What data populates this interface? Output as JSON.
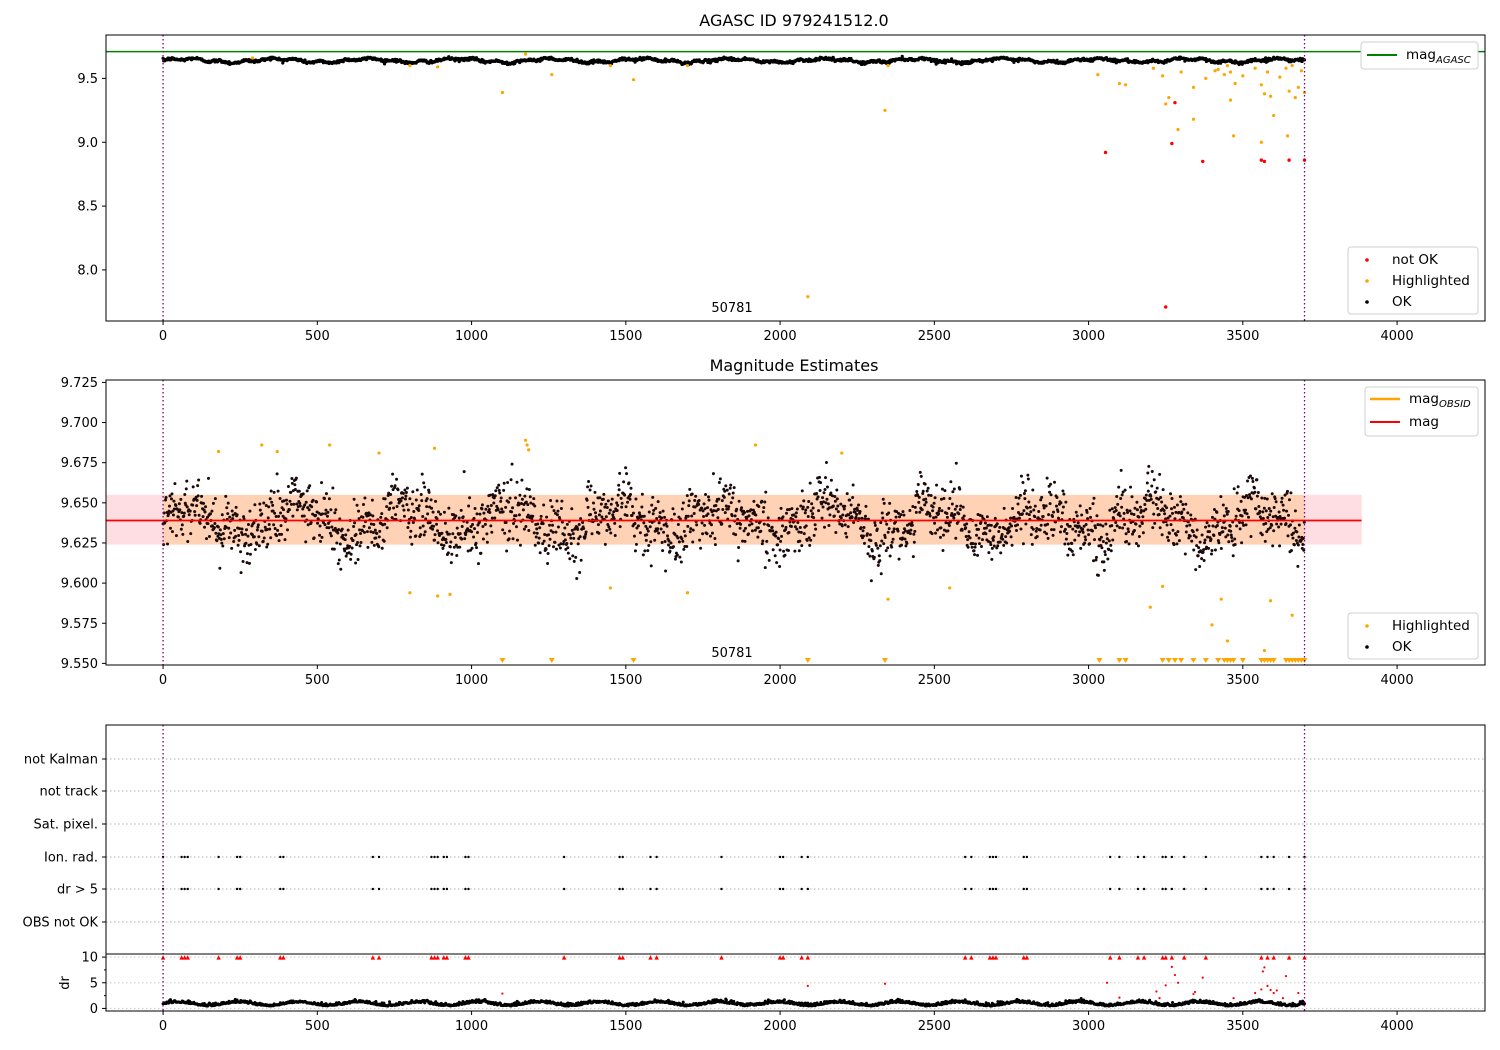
{
  "chart_data": [
    {
      "id": "top",
      "type": "scatter",
      "title": "AGASC ID 979241512.0",
      "xlabel": "",
      "ylabel": "",
      "xlim": [
        -185,
        4285
      ],
      "ylim": [
        7.6,
        9.84
      ],
      "xticks": [
        0,
        500,
        1000,
        1500,
        2000,
        2500,
        3000,
        3500,
        4000
      ],
      "yticks": [
        8.0,
        8.5,
        9.0,
        9.5
      ],
      "ytick_labels": [
        "8.0",
        "8.5",
        "9.0",
        "9.5"
      ],
      "vlines": [
        0,
        3700
      ],
      "hline_agasc": 9.71,
      "annotation": {
        "text": "50781",
        "x": 1850,
        "y": 7.7
      },
      "legends": [
        {
          "position": "top-right",
          "entries": [
            {
              "label": "mag",
              "sub": "AGASC",
              "color": "#008000",
              "kind": "line"
            }
          ]
        },
        {
          "position": "lower-right",
          "entries": [
            {
              "label": "not OK",
              "color": "#ff0000",
              "kind": "dot"
            },
            {
              "label": "Highlighted",
              "color": "#ffa500",
              "kind": "dot"
            },
            {
              "label": "OK",
              "color": "#000000",
              "kind": "dot"
            }
          ]
        }
      ],
      "series": [
        {
          "name": "OK",
          "color": "#000000",
          "kind": "band",
          "x_range": [
            0,
            3700
          ],
          "center": 9.64,
          "amplitude": 0.02
        },
        {
          "name": "Highlighted",
          "color": "#ffa500",
          "points": [
            [
              290,
              9.66
            ],
            [
              800,
              9.6
            ],
            [
              890,
              9.59
            ],
            [
              1100,
              9.39
            ],
            [
              1175,
              9.69
            ],
            [
              1260,
              9.53
            ],
            [
              1450,
              9.6
            ],
            [
              1525,
              9.49
            ],
            [
              1700,
              9.6
            ],
            [
              2090,
              7.79
            ],
            [
              2340,
              9.25
            ],
            [
              2350,
              9.6
            ],
            [
              3030,
              9.53
            ],
            [
              3100,
              9.46
            ],
            [
              3120,
              9.45
            ],
            [
              3210,
              9.58
            ],
            [
              3240,
              9.52
            ],
            [
              3250,
              9.3
            ],
            [
              3260,
              9.35
            ],
            [
              3290,
              9.1
            ],
            [
              3300,
              9.55
            ],
            [
              3340,
              9.43
            ],
            [
              3340,
              9.18
            ],
            [
              3380,
              9.5
            ],
            [
              3410,
              9.56
            ],
            [
              3420,
              9.57
            ],
            [
              3440,
              9.53
            ],
            [
              3450,
              9.6
            ],
            [
              3460,
              9.55
            ],
            [
              3460,
              9.33
            ],
            [
              3470,
              9.05
            ],
            [
              3475,
              9.46
            ],
            [
              3500,
              9.52
            ],
            [
              3540,
              9.58
            ],
            [
              3560,
              9.45
            ],
            [
              3560,
              9.0
            ],
            [
              3570,
              9.38
            ],
            [
              3580,
              9.55
            ],
            [
              3590,
              9.36
            ],
            [
              3600,
              9.21
            ],
            [
              3620,
              9.51
            ],
            [
              3640,
              9.58
            ],
            [
              3645,
              9.05
            ],
            [
              3650,
              9.4
            ],
            [
              3660,
              9.6
            ],
            [
              3670,
              9.35
            ],
            [
              3680,
              9.43
            ],
            [
              3690,
              9.56
            ],
            [
              3700,
              9.39
            ]
          ]
        },
        {
          "name": "not OK",
          "color": "#ff0000",
          "points": [
            [
              3055,
              8.92
            ],
            [
              3250,
              7.71
            ],
            [
              3270,
              8.99
            ],
            [
              3280,
              9.31
            ],
            [
              3370,
              8.85
            ],
            [
              3560,
              8.86
            ],
            [
              3570,
              8.85
            ],
            [
              3650,
              8.86
            ],
            [
              3700,
              8.86
            ]
          ]
        }
      ]
    },
    {
      "id": "middle",
      "type": "scatter",
      "title": "Magnitude Estimates",
      "xlabel": "",
      "ylabel": "",
      "xlim": [
        -185,
        4285
      ],
      "ylim": [
        9.549,
        9.7265
      ],
      "xticks": [
        0,
        500,
        1000,
        1500,
        2000,
        2500,
        3000,
        3500,
        4000
      ],
      "yticks": [
        9.55,
        9.575,
        9.6,
        9.625,
        9.65,
        9.675,
        9.7,
        9.725
      ],
      "ytick_labels": [
        "9.550",
        "9.575",
        "9.600",
        "9.625",
        "9.650",
        "9.675",
        "9.700",
        "9.725"
      ],
      "vlines": [
        0,
        3700
      ],
      "mag_line": {
        "value": 9.639,
        "x_range": [
          -185,
          3885
        ],
        "color": "#ff0000"
      },
      "mag_band": {
        "low": 9.624,
        "high": 9.655,
        "x_range": [
          -185,
          3885
        ]
      },
      "annotation": {
        "text": "50781",
        "x": 1850,
        "y": 9.553
      },
      "legends": [
        {
          "position": "top-right",
          "entries": [
            {
              "label": "mag",
              "sub": "OBSID",
              "color": "#ffa500",
              "kind": "line"
            },
            {
              "label": "mag",
              "color": "#ff0000",
              "kind": "line"
            }
          ]
        },
        {
          "position": "lower-right",
          "entries": [
            {
              "label": "Highlighted",
              "color": "#ffa500",
              "kind": "dot"
            },
            {
              "label": "OK",
              "color": "#000000",
              "kind": "dot"
            }
          ]
        }
      ],
      "series": [
        {
          "name": "OK",
          "color": "#000000",
          "kind": "cloud",
          "x_range": [
            0,
            3700
          ],
          "center": 9.639,
          "spread": 0.013
        },
        {
          "name": "Highlighted",
          "color": "#ffa500",
          "points": [
            [
              180,
              9.682
            ],
            [
              320,
              9.686
            ],
            [
              370,
              9.682
            ],
            [
              540,
              9.686
            ],
            [
              700,
              9.681
            ],
            [
              800,
              9.594
            ],
            [
              880,
              9.684
            ],
            [
              890,
              9.592
            ],
            [
              930,
              9.593
            ],
            [
              1175,
              9.689
            ],
            [
              1180,
              9.686
            ],
            [
              1185,
              9.683
            ],
            [
              1450,
              9.597
            ],
            [
              1700,
              9.594
            ],
            [
              1920,
              9.686
            ],
            [
              2200,
              9.681
            ],
            [
              2350,
              9.59
            ],
            [
              2550,
              9.597
            ],
            [
              3200,
              9.585
            ],
            [
              3240,
              9.598
            ],
            [
              3400,
              9.574
            ],
            [
              3430,
              9.59
            ],
            [
              3450,
              9.564
            ],
            [
              3570,
              9.558
            ],
            [
              3590,
              9.589
            ],
            [
              3660,
              9.58
            ]
          ]
        },
        {
          "name": "Highlighted (clipped)",
          "color": "#ffa500",
          "kind": "triangles",
          "y": 9.5515,
          "x": [
            1100,
            1260,
            1525,
            2090,
            2340,
            3035,
            3100,
            3120,
            3240,
            3260,
            3280,
            3300,
            3340,
            3380,
            3420,
            3440,
            3450,
            3460,
            3470,
            3500,
            3560,
            3570,
            3580,
            3590,
            3600,
            3640,
            3650,
            3660,
            3670,
            3680,
            3690,
            3700
          ]
        }
      ]
    },
    {
      "id": "bottom",
      "type": "scatter",
      "title": "",
      "xlabel": "",
      "ylabel": "",
      "xlim": [
        -185,
        4285
      ],
      "category_labels": [
        "not Kalman",
        "not track",
        "Sat. pixel.",
        "Ion. rad.",
        "dr > 5",
        "OBS not OK"
      ],
      "vlines": [
        0,
        3700
      ],
      "flag_x": [
        0,
        60,
        70,
        80,
        180,
        240,
        250,
        380,
        390,
        680,
        700,
        870,
        880,
        890,
        910,
        920,
        980,
        990,
        1300,
        1480,
        1490,
        1580,
        1600,
        1810,
        2000,
        2010,
        2070,
        2090,
        2600,
        2620,
        2680,
        2690,
        2700,
        2790,
        2800,
        3070,
        3100,
        3160,
        3180,
        3240,
        3250,
        3270,
        3310,
        3380,
        3560,
        3580,
        3600,
        3650,
        3700
      ],
      "sub_panel": {
        "ylabel": "dr",
        "ylim": [
          -0.5,
          10.6
        ],
        "yticks": [
          0,
          5,
          10
        ],
        "ytick_labels": [
          "0",
          "5",
          "10"
        ],
        "baseline_x_range": [
          0,
          3700
        ],
        "clip_value": 9.9,
        "scatter_points": [
          [
            1100,
            2.9
          ],
          [
            2090,
            4.4
          ],
          [
            2340,
            4.8
          ],
          [
            3060,
            5.0
          ],
          [
            3100,
            2.1
          ],
          [
            3220,
            3.3
          ],
          [
            3230,
            2.0
          ],
          [
            3250,
            4.5
          ],
          [
            3270,
            8.1
          ],
          [
            3280,
            6.5
          ],
          [
            3290,
            5.0
          ],
          [
            3340,
            2.8
          ],
          [
            3345,
            3.2
          ],
          [
            3370,
            6.0
          ],
          [
            3470,
            2.0
          ],
          [
            3540,
            3.0
          ],
          [
            3560,
            3.7
          ],
          [
            3565,
            7.2
          ],
          [
            3570,
            8.0
          ],
          [
            3580,
            4.4
          ],
          [
            3590,
            3.6
          ],
          [
            3600,
            3.0
          ],
          [
            3610,
            3.5
          ],
          [
            3630,
            2.0
          ],
          [
            3640,
            6.3
          ],
          [
            3680,
            3.0
          ]
        ]
      }
    }
  ]
}
